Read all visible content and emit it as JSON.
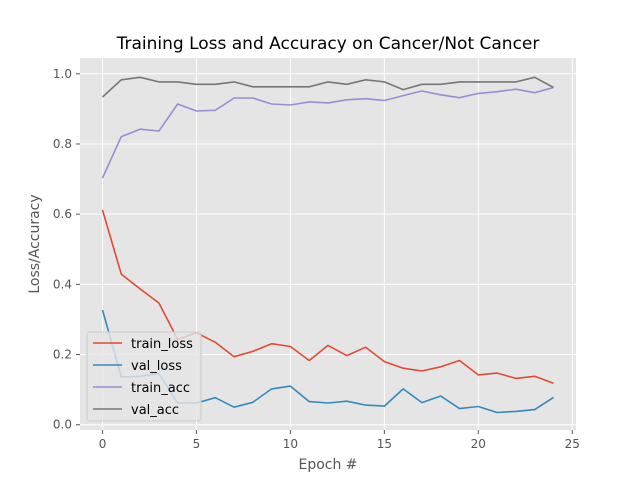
{
  "chart_data": {
    "type": "line",
    "title": "Training Loss and Accuracy on Cancer/Not Cancer",
    "xlabel": "Epoch #",
    "ylabel": "Loss/Accuracy",
    "xlim": [
      -1.2,
      25.2
    ],
    "ylim": [
      -0.015,
      1.045
    ],
    "xticks": [
      0,
      5,
      10,
      15,
      20,
      25
    ],
    "yticks": [
      0.0,
      0.2,
      0.4,
      0.6,
      0.8,
      1.0
    ],
    "xtick_labels": [
      "0",
      "5",
      "10",
      "15",
      "20",
      "25"
    ],
    "ytick_labels": [
      "0.0",
      "0.2",
      "0.4",
      "0.6",
      "0.8",
      "1.0"
    ],
    "grid": true,
    "legend_position": "lower-left",
    "x": [
      0,
      1,
      2,
      3,
      4,
      5,
      6,
      7,
      8,
      9,
      10,
      11,
      12,
      13,
      14,
      15,
      16,
      17,
      18,
      19,
      20,
      21,
      22,
      23,
      24
    ],
    "series": [
      {
        "name": "train_loss",
        "color": "#E24A33",
        "values": [
          0.612,
          0.429,
          0.387,
          0.347,
          0.243,
          0.262,
          0.235,
          0.194,
          0.209,
          0.231,
          0.223,
          0.183,
          0.226,
          0.197,
          0.221,
          0.18,
          0.161,
          0.153,
          0.165,
          0.183,
          0.142,
          0.147,
          0.132,
          0.138,
          0.118
        ]
      },
      {
        "name": "val_loss",
        "color": "#348ABD",
        "values": [
          0.327,
          0.136,
          0.138,
          0.146,
          0.062,
          0.062,
          0.077,
          0.05,
          0.064,
          0.102,
          0.11,
          0.066,
          0.062,
          0.067,
          0.056,
          0.053,
          0.102,
          0.063,
          0.082,
          0.046,
          0.052,
          0.035,
          0.038,
          0.043,
          0.078
        ]
      },
      {
        "name": "train_acc",
        "color": "#988ED5",
        "values": [
          0.703,
          0.821,
          0.842,
          0.837,
          0.914,
          0.894,
          0.896,
          0.931,
          0.931,
          0.914,
          0.911,
          0.92,
          0.917,
          0.926,
          0.929,
          0.924,
          0.938,
          0.951,
          0.94,
          0.932,
          0.944,
          0.949,
          0.956,
          0.946,
          0.961
        ]
      },
      {
        "name": "val_acc",
        "color": "#777777",
        "values": [
          0.934,
          0.983,
          0.99,
          0.977,
          0.977,
          0.97,
          0.97,
          0.977,
          0.963,
          0.963,
          0.963,
          0.963,
          0.977,
          0.97,
          0.983,
          0.977,
          0.955,
          0.97,
          0.97,
          0.977,
          0.977,
          0.977,
          0.977,
          0.99,
          0.961
        ]
      }
    ]
  }
}
